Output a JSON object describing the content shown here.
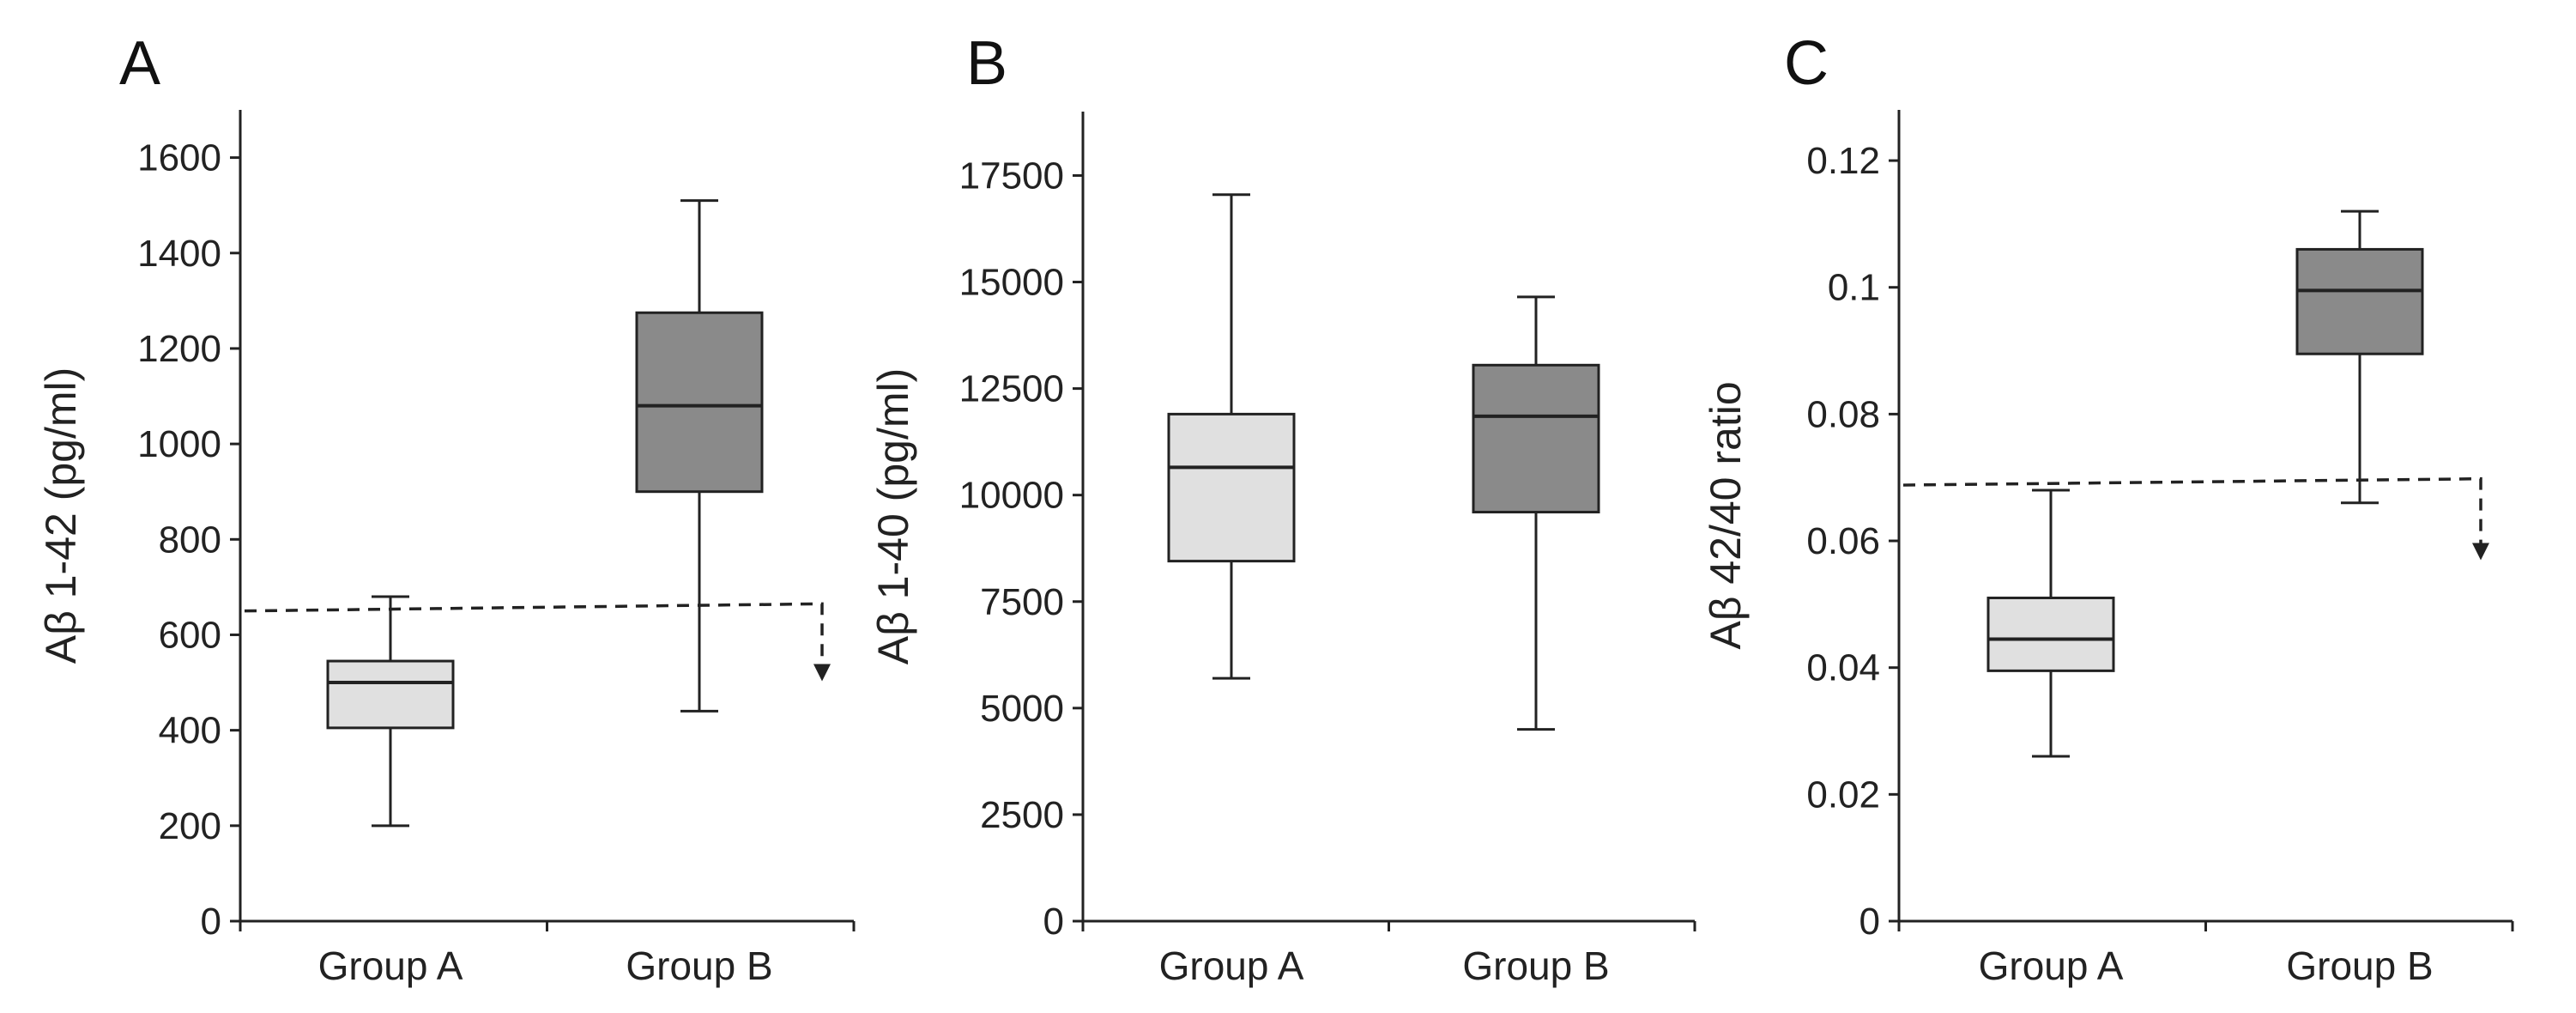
{
  "colors": {
    "group_a_fill": "#e0e0e0",
    "group_b_fill": "#8a8a8a",
    "ink": "#222222"
  },
  "chart_data": [
    {
      "type": "box",
      "panel": "A",
      "ylabel": "Aβ 1-42 (pg/ml)",
      "ylim": [
        0,
        1700
      ],
      "yticks": [
        0,
        200,
        400,
        600,
        800,
        1000,
        1200,
        1400,
        1600
      ],
      "ytick_labels": [
        "0",
        "200",
        "400",
        "600",
        "800",
        "1000",
        "1200",
        "1400",
        "1600"
      ],
      "categories": [
        "Group A",
        "Group B"
      ],
      "boxes": [
        {
          "name": "Group A",
          "min": 200,
          "q1": 405,
          "median": 500,
          "q3": 545,
          "max": 680
        },
        {
          "name": "Group B",
          "min": 440,
          "q1": 900,
          "median": 1080,
          "q3": 1275,
          "max": 1510
        }
      ],
      "threshold": {
        "y_start": 650,
        "y_end": 665,
        "arrow_to": 510
      }
    },
    {
      "type": "box",
      "panel": "B",
      "ylabel": "Aβ 1-40 (pg/ml)",
      "ylim": [
        0,
        19000
      ],
      "yticks": [
        0,
        2500,
        5000,
        7500,
        10000,
        12500,
        15000,
        17500
      ],
      "ytick_labels": [
        "0",
        "2500",
        "5000",
        "7500",
        "10000",
        "12500",
        "15000",
        "17500"
      ],
      "categories": [
        "Group A",
        "Group B"
      ],
      "boxes": [
        {
          "name": "Group A",
          "min": 5700,
          "q1": 8450,
          "median": 10650,
          "q3": 11900,
          "max": 17050
        },
        {
          "name": "Group B",
          "min": 4500,
          "q1": 9600,
          "median": 11850,
          "q3": 13050,
          "max": 14650
        }
      ]
    },
    {
      "type": "box",
      "panel": "C",
      "ylabel": "Aβ 42/40 ratio",
      "ylim": [
        0,
        0.128
      ],
      "yticks": [
        0,
        0.02,
        0.04,
        0.06,
        0.08,
        0.1,
        0.12
      ],
      "ytick_labels": [
        "0",
        "0.02",
        "0.04",
        "0.06",
        "0.08",
        "0.1",
        "0.12"
      ],
      "categories": [
        "Group A",
        "Group B"
      ],
      "boxes": [
        {
          "name": "Group A",
          "min": 0.026,
          "q1": 0.0395,
          "median": 0.0445,
          "q3": 0.051,
          "max": 0.068
        },
        {
          "name": "Group B",
          "min": 0.066,
          "q1": 0.0895,
          "median": 0.0995,
          "q3": 0.106,
          "max": 0.112
        }
      ],
      "threshold": {
        "y_start": 0.0688,
        "y_end": 0.0698,
        "arrow_to": 0.0575
      }
    }
  ]
}
